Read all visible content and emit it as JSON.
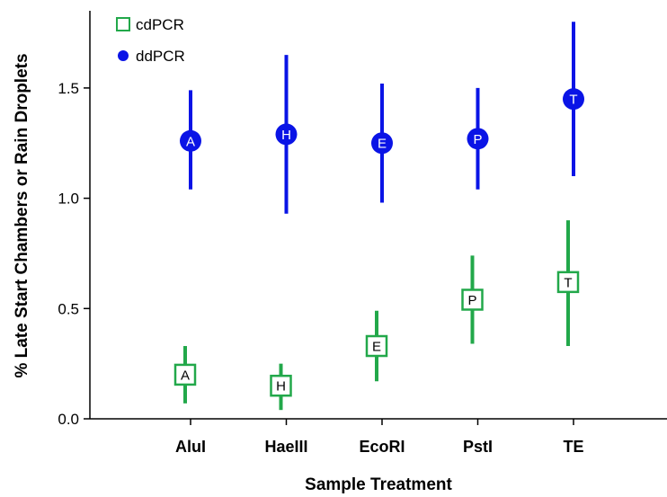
{
  "chart_data": {
    "type": "scatter",
    "categories": [
      "AluI",
      "HaeIII",
      "EcoRI",
      "PstI",
      "TE"
    ],
    "xlabel": "Sample Treatment",
    "ylabel": "% Late Start Chambers or Rain Droplets",
    "ylim": [
      0,
      1.85
    ],
    "yticks": [
      "0.0",
      "0.5",
      "1.0",
      "1.5"
    ],
    "legend_position": "top-left",
    "series": [
      {
        "name": "cdPCR",
        "color": "#22a84a",
        "marker": "open-square",
        "labels": [
          "A",
          "H",
          "E",
          "P",
          "T"
        ],
        "values": [
          0.2,
          0.15,
          0.33,
          0.54,
          0.62
        ],
        "lower": [
          0.07,
          0.04,
          0.17,
          0.34,
          0.33
        ],
        "upper": [
          0.33,
          0.25,
          0.49,
          0.74,
          0.9
        ]
      },
      {
        "name": "ddPCR",
        "color": "#0a14e6",
        "marker": "filled-circle",
        "labels": [
          "A",
          "H",
          "E",
          "P",
          "T"
        ],
        "values": [
          1.26,
          1.29,
          1.25,
          1.27,
          1.45
        ],
        "lower": [
          1.04,
          0.93,
          0.98,
          1.04,
          1.1
        ],
        "upper": [
          1.49,
          1.65,
          1.52,
          1.5,
          1.8
        ]
      }
    ]
  }
}
